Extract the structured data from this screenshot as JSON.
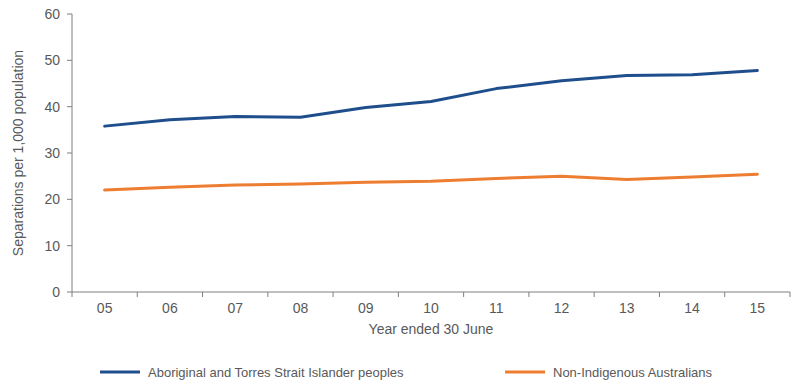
{
  "chart_data": {
    "type": "line",
    "y_label": "Separations per 1,000 population",
    "x_label": "Year ended 30 June",
    "categories": [
      "05",
      "06",
      "07",
      "08",
      "09",
      "10",
      "11",
      "12",
      "13",
      "14",
      "15"
    ],
    "series": [
      {
        "name": "Aboriginal and Torres Strait Islander peoples",
        "color": "#1f4e8c",
        "values": [
          35.8,
          37.2,
          37.9,
          37.7,
          39.8,
          41.1,
          43.9,
          45.6,
          46.7,
          46.9,
          47.8
        ]
      },
      {
        "name": "Non-Indigenous Australians",
        "color": "#ed7d31",
        "values": [
          22.0,
          22.6,
          23.1,
          23.3,
          23.7,
          23.9,
          24.5,
          25.0,
          24.3,
          24.8,
          25.4
        ]
      }
    ],
    "ylim": [
      0,
      60
    ],
    "yticks": [
      0,
      10,
      20,
      30,
      40,
      50,
      60
    ],
    "grid": false,
    "legend": "bottom"
  }
}
